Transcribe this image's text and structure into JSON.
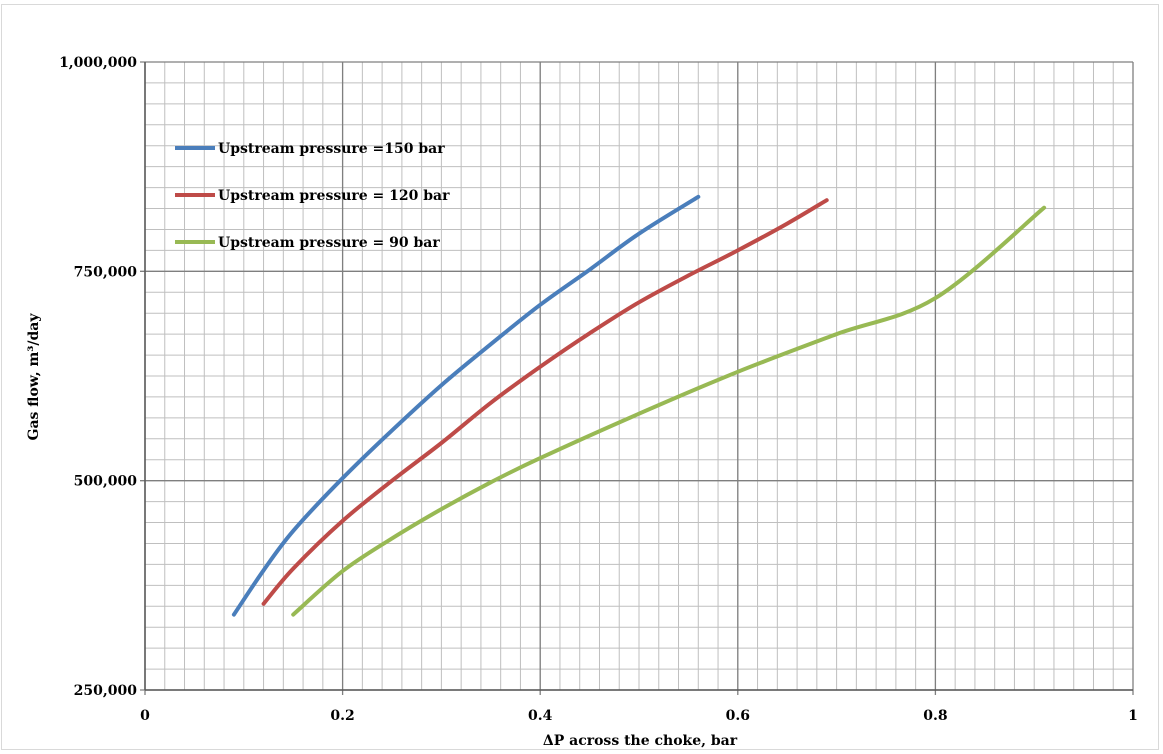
{
  "chart_data": {
    "type": "line",
    "xlabel": "ΔP across the choke, bar",
    "ylabel": "Gas flow,  m³/day",
    "xlim": [
      0,
      1
    ],
    "ylim": [
      250000,
      1000000
    ],
    "x_ticks": [
      0,
      0.2,
      0.4,
      0.6,
      0.8,
      1
    ],
    "x_tick_labels": [
      "0",
      "0.2",
      "0.4",
      "0.6",
      "0.8",
      "1"
    ],
    "y_ticks": [
      250000,
      500000,
      750000,
      1000000
    ],
    "y_tick_labels": [
      "250,000",
      "500,000",
      "750,000",
      "1,000,000"
    ],
    "grid": true,
    "legend_position": "top-left",
    "series": [
      {
        "name": "Upstream pressure =150 bar",
        "color": "#4a7ebb",
        "x": [
          0.09,
          0.12,
          0.15,
          0.2,
          0.25,
          0.3,
          0.35,
          0.4,
          0.45,
          0.5,
          0.56
        ],
        "y": [
          340000,
          393000,
          440000,
          503000,
          560000,
          614000,
          663000,
          710000,
          752000,
          795000,
          839000
        ]
      },
      {
        "name": "Upstream pressure = 120 bar",
        "color": "#be4b48",
        "x": [
          0.12,
          0.15,
          0.2,
          0.25,
          0.3,
          0.35,
          0.4,
          0.45,
          0.5,
          0.55,
          0.6,
          0.65,
          0.69
        ],
        "y": [
          353000,
          395000,
          452000,
          500000,
          545000,
          593000,
          636000,
          676000,
          713000,
          745000,
          775000,
          807000,
          835000
        ]
      },
      {
        "name": "Upstream pressure = 90 bar",
        "color": "#98b954",
        "x": [
          0.15,
          0.2,
          0.25,
          0.3,
          0.35,
          0.4,
          0.5,
          0.6,
          0.7,
          0.8,
          0.91
        ],
        "y": [
          340000,
          392000,
          431000,
          466000,
          498000,
          527000,
          580000,
          630000,
          675000,
          718000,
          826000
        ]
      }
    ]
  }
}
